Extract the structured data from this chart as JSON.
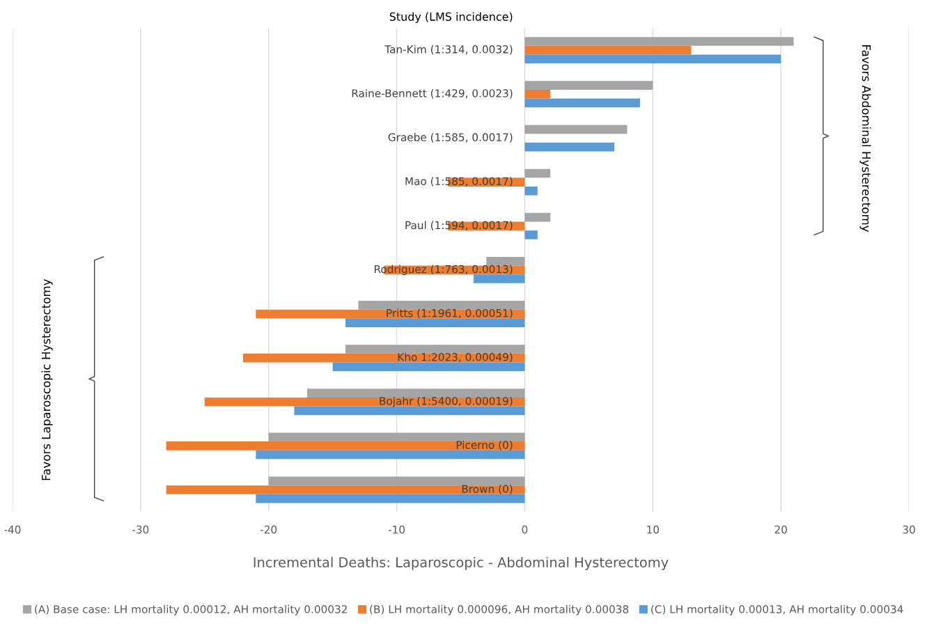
{
  "chart_data": {
    "type": "bar",
    "orientation": "horizontal",
    "title": "Study (LMS incidence)",
    "xlabel": "Incremental Deaths: Laparoscopic - Abdominal Hysterectomy",
    "categories": [
      "Tan-Kim (1:314, 0.0032)",
      "Raine-Bennett (1:429, 0.0023)",
      "Graebe (1:585, 0.0017)",
      "Mao (1:585, 0.0017)",
      "Paul (1:594, 0.0017)",
      "Rodriguez (1:763, 0.0013)",
      "Pritts (1:1961, 0.00051)",
      "Kho 1:2023, 0.00049)",
      "Bojahr (1:5400, 0.00019)",
      "Picerno (0)",
      "Brown (0)"
    ],
    "series": [
      {
        "name": "(A) Base case: LH mortality 0.00012, AH mortality 0.00032",
        "color": "#a5a5a5",
        "values": [
          21,
          10,
          8,
          2,
          2,
          -3,
          -13,
          -14,
          -17,
          -20,
          -20
        ]
      },
      {
        "name": "(B) LH mortality 0.000096, AH mortality 0.00038",
        "color": "#ed7d31",
        "values": [
          13,
          2,
          0,
          -6,
          -6,
          -11,
          -21,
          -22,
          -25,
          -28,
          -28
        ]
      },
      {
        "name": "(C) LH mortality 0.00013, AH mortality 0.00034",
        "color": "#5b9bd5",
        "values": [
          20,
          9,
          7,
          1,
          1,
          -4,
          -14,
          -15,
          -18,
          -21,
          -21
        ]
      }
    ],
    "xlim": [
      -40,
      30
    ],
    "xticks": [
      -40,
      -30,
      -20,
      -10,
      0,
      10,
      20,
      30
    ],
    "grid": "x",
    "legend": "bottom",
    "annotations": [
      "Favors Abdominal Hysterectomy",
      "Favors Laparoscopic Hysterectomy"
    ]
  }
}
